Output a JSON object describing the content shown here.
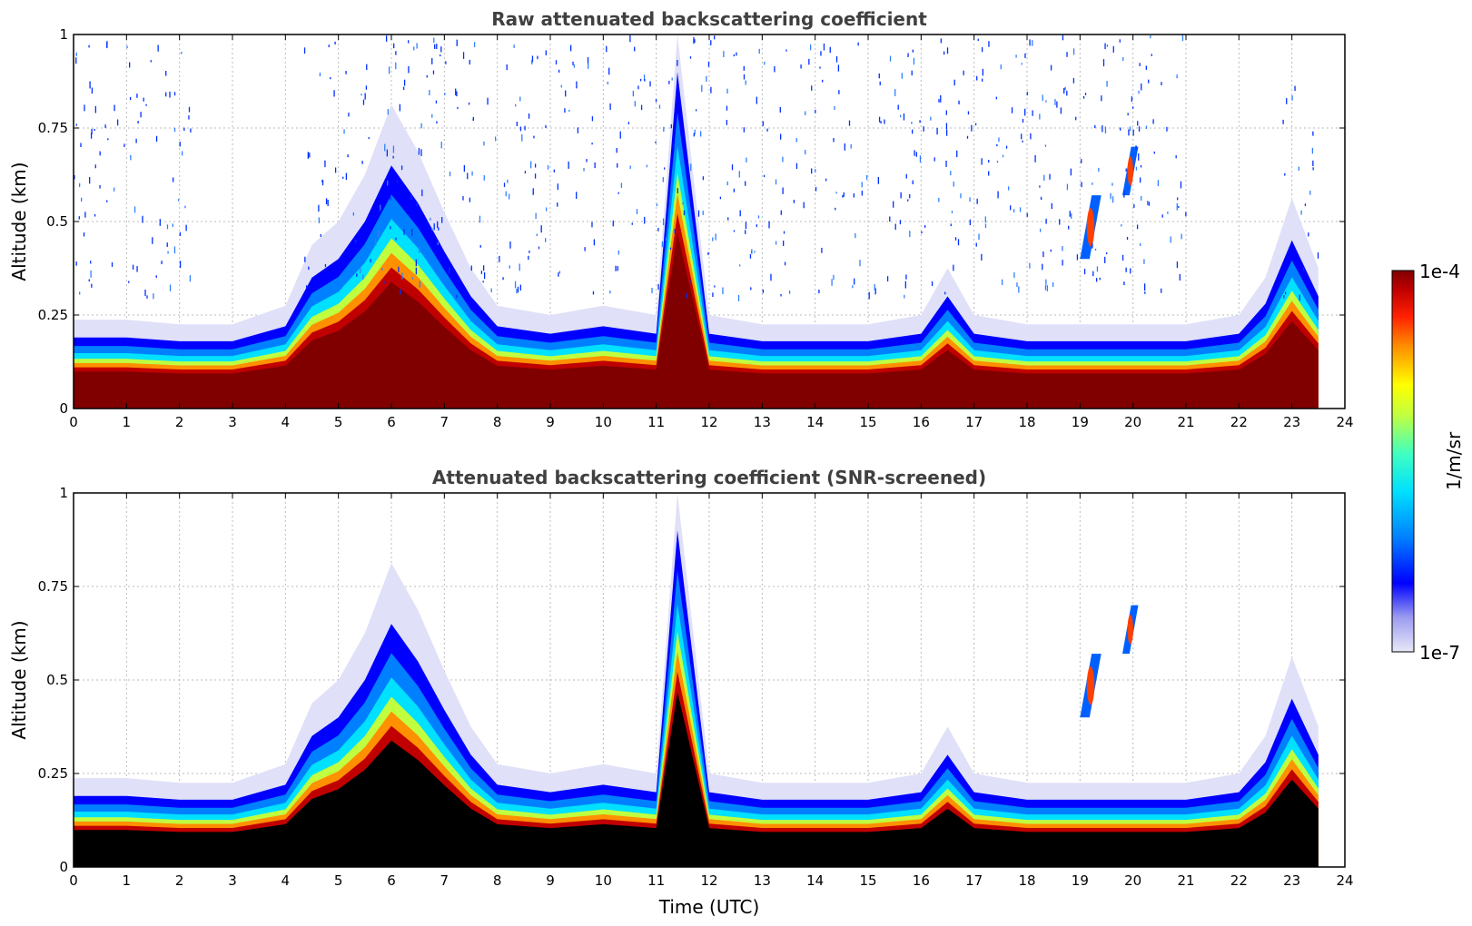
{
  "chart_data": [
    {
      "type": "heatmap",
      "title": "Raw attenuated backscattering coefficient",
      "xlabel": "",
      "ylabel": "Altitude (km)",
      "xlim": [
        0,
        24
      ],
      "ylim": [
        0,
        1
      ],
      "xticks": [
        "0",
        "1",
        "2",
        "3",
        "4",
        "5",
        "6",
        "7",
        "8",
        "9",
        "10",
        "11",
        "12",
        "13",
        "14",
        "15",
        "16",
        "17",
        "18",
        "19",
        "20",
        "21",
        "22",
        "23",
        "24"
      ],
      "yticks": [
        "0",
        "0.25",
        "0.5",
        "0.75",
        "1"
      ],
      "grid": true,
      "data_extent_hours": [
        0,
        23.5
      ],
      "layer_top_km": {
        "x": [
          0,
          1,
          2,
          3,
          4,
          4.5,
          5,
          5.5,
          6,
          6.5,
          7,
          7.5,
          8,
          9,
          10,
          11,
          11.4,
          12,
          13,
          14,
          15,
          16,
          16.5,
          17,
          18,
          19,
          20,
          21,
          22,
          22.5,
          23,
          23.5
        ],
        "y": [
          0.19,
          0.19,
          0.18,
          0.18,
          0.22,
          0.35,
          0.4,
          0.5,
          0.65,
          0.55,
          0.42,
          0.3,
          0.22,
          0.2,
          0.22,
          0.2,
          0.9,
          0.2,
          0.18,
          0.18,
          0.18,
          0.2,
          0.3,
          0.2,
          0.18,
          0.18,
          0.18,
          0.18,
          0.2,
          0.28,
          0.45,
          0.3
        ]
      },
      "elevated_features": [
        {
          "time_range": [
            19.0,
            19.4
          ],
          "altitude_range": [
            0.4,
            0.57
          ]
        },
        {
          "time_range": [
            19.8,
            20.1
          ],
          "altitude_range": [
            0.57,
            0.7
          ]
        }
      ],
      "noise_above_layer": true
    },
    {
      "type": "heatmap",
      "title": "Attenuated backscattering coefficient (SNR-screened)",
      "xlabel": "Time (UTC)",
      "ylabel": "Altitude (km)",
      "xlim": [
        0,
        24
      ],
      "ylim": [
        0,
        1
      ],
      "xticks": [
        "0",
        "1",
        "2",
        "3",
        "4",
        "5",
        "6",
        "7",
        "8",
        "9",
        "10",
        "11",
        "12",
        "13",
        "14",
        "15",
        "16",
        "17",
        "18",
        "19",
        "20",
        "21",
        "22",
        "23",
        "24"
      ],
      "yticks": [
        "0",
        "0.25",
        "0.5",
        "0.75",
        "1"
      ],
      "grid": true,
      "data_extent_hours": [
        0,
        23.5
      ],
      "layer_top_km": {
        "x": [
          0,
          1,
          2,
          3,
          4,
          4.5,
          5,
          5.5,
          6,
          6.5,
          7,
          7.5,
          8,
          9,
          10,
          11,
          11.4,
          12,
          13,
          14,
          15,
          16,
          16.5,
          17,
          18,
          19,
          20,
          21,
          22,
          22.5,
          23,
          23.5
        ],
        "y": [
          0.19,
          0.19,
          0.18,
          0.18,
          0.22,
          0.35,
          0.4,
          0.5,
          0.65,
          0.55,
          0.42,
          0.3,
          0.22,
          0.2,
          0.22,
          0.2,
          0.9,
          0.2,
          0.18,
          0.18,
          0.18,
          0.2,
          0.3,
          0.2,
          0.18,
          0.18,
          0.18,
          0.18,
          0.2,
          0.28,
          0.45,
          0.3
        ]
      },
      "elevated_features": [
        {
          "time_range": [
            19.0,
            19.4
          ],
          "altitude_range": [
            0.4,
            0.57
          ]
        },
        {
          "time_range": [
            19.8,
            20.1
          ],
          "altitude_range": [
            0.57,
            0.7
          ]
        }
      ],
      "screened_black_below_layer": true
    }
  ],
  "colorbar": {
    "label": "1/m/sr",
    "min_label": "1e-7",
    "max_label": "1e-4",
    "colors": [
      "#e8e8f8",
      "#9c9cf0",
      "#0000ff",
      "#0080ff",
      "#00e0ff",
      "#40ffc0",
      "#c0ff40",
      "#ffff00",
      "#ff9000",
      "#ff2000",
      "#c00000",
      "#800000"
    ]
  },
  "colors": {
    "screened": "#000000",
    "grid": "#bbbbbb",
    "title": "#404040"
  }
}
